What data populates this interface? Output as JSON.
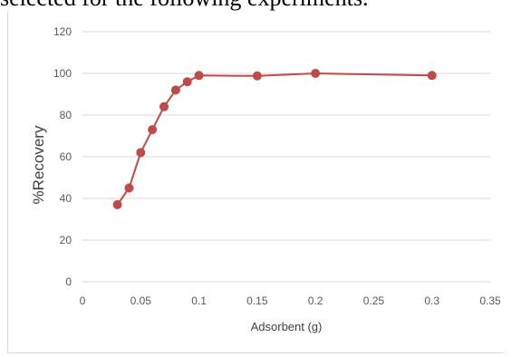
{
  "page": {
    "header_text": "selected for the following experiments."
  },
  "colors": {
    "series": "#be4b48",
    "gridline": "#d9d9d9",
    "axis_text": "#595959"
  },
  "chart_data": {
    "type": "line",
    "title": "",
    "xlabel": "Adsorbent (g)",
    "ylabel": "%Recovery",
    "xlim": [
      0,
      0.35
    ],
    "ylim": [
      0,
      120
    ],
    "x_ticks": [
      "0",
      "0.05",
      "0.1",
      "0.15",
      "0.2",
      "0.25",
      "0.3",
      "0.35"
    ],
    "y_ticks": [
      "0",
      "20",
      "40",
      "60",
      "80",
      "100",
      "120"
    ],
    "grid": "horizontal",
    "legend": "none",
    "markers": "circle",
    "series": [
      {
        "x": [
          0.03,
          0.04,
          0.05,
          0.06,
          0.07,
          0.08,
          0.09,
          0.1,
          0.15,
          0.2,
          0.3
        ],
        "y": [
          37,
          45,
          62,
          73,
          84,
          92,
          96,
          99,
          98.8,
          100,
          99
        ]
      }
    ]
  }
}
